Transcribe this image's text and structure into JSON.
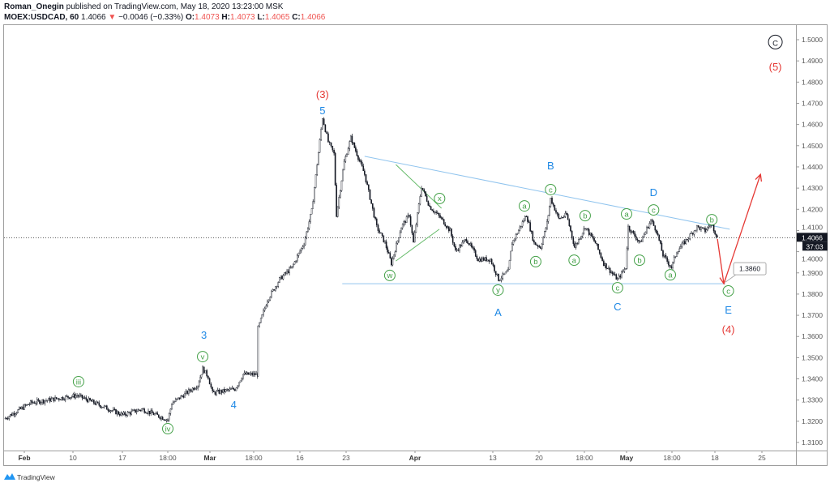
{
  "header": {
    "author": "Roman_Onegin",
    "published": " published on TradingView.com, May 18, 2020 13:23:00 MSK",
    "symbol": "MOEX:USDCAD, 60",
    "last": "1.4066",
    "change": "−0.0046 (−0.33%)",
    "change_direction_icon": "triangle-down-icon",
    "o_label": "O:",
    "o": "1.4073",
    "h_label": "H:",
    "h": "1.4073",
    "l_label": "L:",
    "l": "1.4065",
    "c_label": "C:",
    "c": "1.4066"
  },
  "footer": {
    "brand": "TradingView",
    "logo_icon": "tradingview-logo-icon"
  },
  "colors": {
    "up_down": "#ef5350",
    "wave_blue": "#1e88e5",
    "wave_green": "#43a047",
    "wave_red": "#e53935",
    "trendline": "#90c4ee",
    "candle": "#131722"
  },
  "chart_data": {
    "type": "candlestick",
    "symbol": "MOEX:USDCAD",
    "interval": "60",
    "ylim": [
      1.305,
      1.508
    ],
    "y_ticks": [
      "1.3100",
      "1.3200",
      "1.3300",
      "1.3400",
      "1.3500",
      "1.3600",
      "1.3700",
      "1.3800",
      "1.3900",
      "1.4000",
      "1.4100",
      "1.4200",
      "1.4300",
      "1.4400",
      "1.4500",
      "1.4600",
      "1.4700",
      "1.4800",
      "1.4900",
      "1.5000"
    ],
    "x_ticks": [
      {
        "label": "Feb",
        "date": "2020-02-03",
        "bold": true
      },
      {
        "label": "10",
        "date": "2020-02-10"
      },
      {
        "label": "17",
        "date": "2020-02-17"
      },
      {
        "label": "18:00",
        "date": "2020-02-24"
      },
      {
        "label": "Mar",
        "date": "2020-03-02",
        "bold": true
      },
      {
        "label": "18:00",
        "date": "2020-03-09"
      },
      {
        "label": "16",
        "date": "2020-03-16"
      },
      {
        "label": "23",
        "date": "2020-03-23"
      },
      {
        "label": "Apr",
        "date": "2020-04-01",
        "bold": true
      },
      {
        "label": "13",
        "date": "2020-04-13"
      },
      {
        "label": "20",
        "date": "2020-04-20"
      },
      {
        "label": "18:00",
        "date": "2020-04-27"
      },
      {
        "label": "May",
        "date": "2020-05-04",
        "bold": true
      },
      {
        "label": "18:00",
        "date": "2020-05-11"
      },
      {
        "label": "18",
        "date": "2020-05-18"
      },
      {
        "label": "25",
        "date": "2020-05-25"
      }
    ],
    "last_price": {
      "value": "1.4066",
      "countdown": "37:03"
    },
    "price_path": [
      [
        "2020-01-31T02",
        1.3211
      ],
      [
        "2020-02-03T22",
        1.3287
      ],
      [
        "2020-02-10T14",
        1.3322
      ],
      [
        "2020-02-17T00",
        1.323
      ],
      [
        "2020-02-20T00",
        1.3257
      ],
      [
        "2020-02-24T00",
        1.3207
      ],
      [
        "2020-02-24T16",
        1.3284
      ],
      [
        "2020-02-29T00",
        1.3372
      ],
      [
        "2020-02-29T19",
        1.3448
      ],
      [
        "2020-03-01T17",
        1.341
      ],
      [
        "2020-03-02T10",
        1.3333
      ],
      [
        "2020-03-06T00",
        1.3352
      ],
      [
        "2020-03-07T07",
        1.3421
      ],
      [
        "2020-03-09T14",
        1.3421
      ],
      [
        "2020-03-09T16",
        1.3639
      ],
      [
        "2020-03-11T02",
        1.3773
      ],
      [
        "2020-03-12T22",
        1.3869
      ],
      [
        "2020-03-14T19",
        1.3926
      ],
      [
        "2020-03-16T15",
        1.4041
      ],
      [
        "2020-03-17T19",
        1.4193
      ],
      [
        "2020-03-19T10",
        1.4633
      ],
      [
        "2020-03-20T07",
        1.4518
      ],
      [
        "2020-03-21T04",
        1.4461
      ],
      [
        "2020-03-21T13",
        1.4174
      ],
      [
        "2020-03-22T17",
        1.4423
      ],
      [
        "2020-03-23T15",
        1.4537
      ],
      [
        "2020-03-24T10",
        1.4461
      ],
      [
        "2020-03-25T10",
        1.4365
      ],
      [
        "2020-03-27T00",
        1.4117
      ],
      [
        "2020-03-28T02",
        1.4041
      ],
      [
        "2020-03-28T22",
        1.3945
      ],
      [
        "2020-03-30T05",
        1.4117
      ],
      [
        "2020-03-31T06",
        1.4174
      ],
      [
        "2020-03-31T19",
        1.4041
      ],
      [
        "2020-04-02T00",
        1.4308
      ],
      [
        "2020-04-03T06",
        1.4213
      ],
      [
        "2020-04-05T02",
        1.4155
      ],
      [
        "2020-04-06T10",
        1.4098
      ],
      [
        "2020-04-07T06",
        1.4002
      ],
      [
        "2020-04-08T22",
        1.406
      ],
      [
        "2020-04-10T18",
        1.3964
      ],
      [
        "2020-04-12T15",
        1.3964
      ],
      [
        "2020-04-13T21",
        1.3869
      ],
      [
        "2020-04-15T08",
        1.3907
      ],
      [
        "2020-04-15T22",
        1.4041
      ],
      [
        "2020-04-18T02",
        1.4174
      ],
      [
        "2020-04-19T06",
        1.4041
      ],
      [
        "2020-04-20T06",
        1.4021
      ],
      [
        "2020-04-21T06",
        1.4136
      ],
      [
        "2020-04-21T19",
        1.4251
      ],
      [
        "2020-04-23T01",
        1.4155
      ],
      [
        "2020-04-24T06",
        1.4174
      ],
      [
        "2020-04-25T12",
        1.4021
      ],
      [
        "2020-04-27T03",
        1.4117
      ],
      [
        "2020-04-28T20",
        1.4041
      ],
      [
        "2020-04-30T05",
        1.3945
      ],
      [
        "2020-05-02T12",
        1.3869
      ],
      [
        "2020-05-03T21",
        1.3926
      ],
      [
        "2020-05-04T06",
        1.4117
      ],
      [
        "2020-05-06T02",
        1.4041
      ],
      [
        "2020-05-07T18",
        1.4148
      ],
      [
        "2020-05-08T15",
        1.4098
      ],
      [
        "2020-05-09T15",
        1.3983
      ],
      [
        "2020-05-10T22",
        1.3926
      ],
      [
        "2020-05-11T19",
        1.4002
      ],
      [
        "2020-05-13T12",
        1.406
      ],
      [
        "2020-05-15T02",
        1.4117
      ],
      [
        "2020-05-16T10",
        1.4098
      ],
      [
        "2020-05-17T10",
        1.4136
      ],
      [
        "2020-05-18T09",
        1.4066
      ]
    ],
    "wave_labels": [
      {
        "text": "iii",
        "date": "2020-02-10T19",
        "price": 1.3387,
        "style": "circle-green"
      },
      {
        "text": "iv",
        "date": "2020-02-24T00",
        "price": 1.3165,
        "style": "circle-green"
      },
      {
        "text": "v",
        "date": "2020-02-29T19",
        "price": 1.3505,
        "style": "circle-green"
      },
      {
        "text": "3",
        "date": "2020-03-01T00",
        "price": 1.3609,
        "style": "blue"
      },
      {
        "text": "4",
        "date": "2020-03-05T19",
        "price": 1.328,
        "style": "blue"
      },
      {
        "text": "(3)",
        "date": "2020-03-19T10",
        "price": 1.4744,
        "style": "red"
      },
      {
        "text": "5",
        "date": "2020-03-19T10",
        "price": 1.4667,
        "style": "blue"
      },
      {
        "text": "w",
        "date": "2020-03-28T17",
        "price": 1.3888,
        "style": "circle-green"
      },
      {
        "text": "x",
        "date": "2020-04-04T19",
        "price": 1.4251,
        "style": "circle-green"
      },
      {
        "text": "y",
        "date": "2020-04-13T19",
        "price": 1.3819,
        "style": "circle-green"
      },
      {
        "text": "A",
        "date": "2020-04-13T19",
        "price": 1.3716,
        "style": "blue"
      },
      {
        "text": "a",
        "date": "2020-04-17T19",
        "price": 1.4216,
        "style": "circle-green"
      },
      {
        "text": "b",
        "date": "2020-04-19T12",
        "price": 1.3953,
        "style": "circle-green"
      },
      {
        "text": "B",
        "date": "2020-04-21T19",
        "price": 1.4407,
        "style": "blue"
      },
      {
        "text": "c",
        "date": "2020-04-21T19",
        "price": 1.4293,
        "style": "circle-green"
      },
      {
        "text": "a",
        "date": "2020-04-25T10",
        "price": 1.396,
        "style": "circle-green"
      },
      {
        "text": "b",
        "date": "2020-04-27T03",
        "price": 1.417,
        "style": "circle-green"
      },
      {
        "text": "c",
        "date": "2020-05-02T12",
        "price": 1.383,
        "style": "circle-green"
      },
      {
        "text": "C",
        "date": "2020-05-02T12",
        "price": 1.3742,
        "style": "blue"
      },
      {
        "text": "a",
        "date": "2020-05-04T00",
        "price": 1.4178,
        "style": "circle-green"
      },
      {
        "text": "b",
        "date": "2020-05-06T00",
        "price": 1.396,
        "style": "circle-green"
      },
      {
        "text": "c",
        "date": "2020-05-08T04",
        "price": 1.4197,
        "style": "circle-green"
      },
      {
        "text": "D",
        "date": "2020-05-08T04",
        "price": 1.4281,
        "style": "blue"
      },
      {
        "text": "a",
        "date": "2020-05-10T18",
        "price": 1.3891,
        "style": "circle-green"
      },
      {
        "text": "b",
        "date": "2020-05-17T12",
        "price": 1.4151,
        "style": "circle-green"
      },
      {
        "text": "c",
        "date": "2020-05-20T00",
        "price": 1.3815,
        "style": "circle-green"
      },
      {
        "text": "E",
        "date": "2020-05-20T00",
        "price": 1.3727,
        "style": "blue"
      },
      {
        "text": "(4)",
        "date": "2020-05-20T00",
        "price": 1.3635,
        "style": "red"
      },
      {
        "text": "C",
        "date": "2020-05-27T00",
        "price": 1.4989,
        "style": "circle-black"
      },
      {
        "text": "(5)",
        "date": "2020-05-27T00",
        "price": 1.4874,
        "style": "red"
      }
    ],
    "trendlines": [
      {
        "name": "triangle-upper",
        "color": "#90c4ee",
        "from": [
          "2020-03-25T10",
          1.445
        ],
        "to": [
          "2020-05-20T05",
          1.4106
        ]
      },
      {
        "name": "triangle-lower",
        "color": "#90c4ee",
        "from": [
          "2020-03-22T10",
          1.3849
        ],
        "to": [
          "2020-05-19T14",
          1.3849
        ]
      },
      {
        "name": "wxy-upper",
        "color": "#66bb6a",
        "from": [
          "2020-03-29T12",
          1.4411
        ],
        "to": [
          "2020-04-05T02",
          1.4205
        ]
      },
      {
        "name": "wxy-lower",
        "color": "#66bb6a",
        "from": [
          "2020-03-29T12",
          1.3956
        ],
        "to": [
          "2020-04-04T18",
          1.4106
        ]
      }
    ],
    "projection": {
      "color": "#e53935",
      "points": [
        [
          "2020-05-18T09",
          1.406
        ],
        [
          "2020-05-19T08",
          1.3849
        ],
        [
          "2020-05-24T19",
          1.4365
        ]
      ],
      "price_label": "1.3860"
    }
  }
}
